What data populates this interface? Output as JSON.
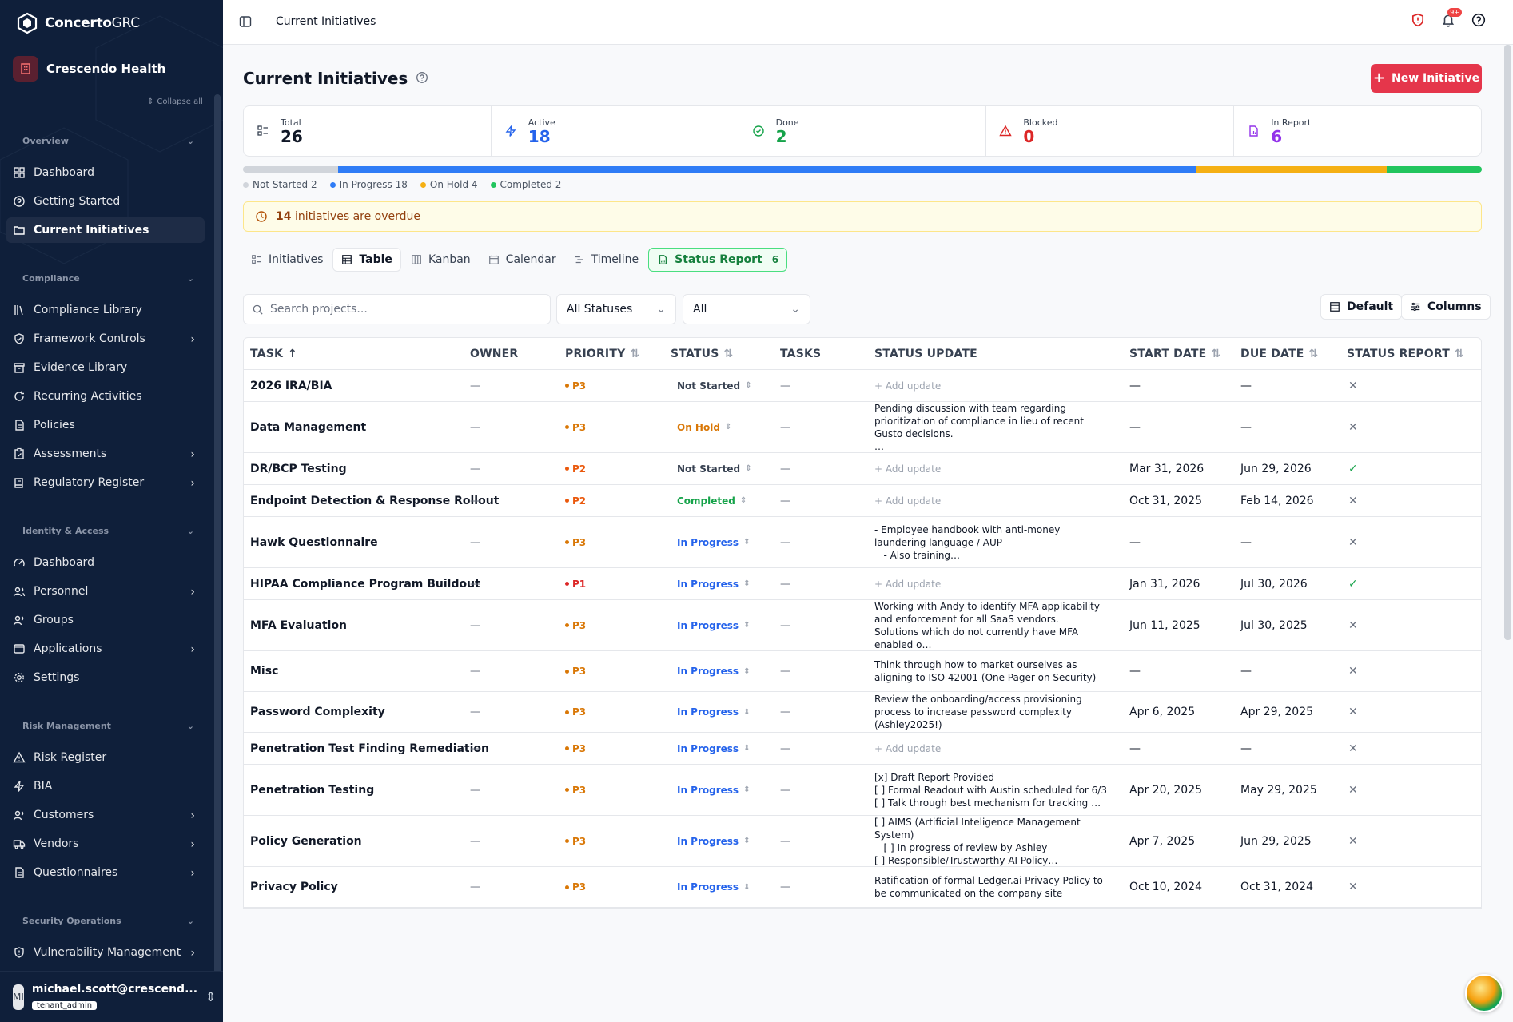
{
  "brand": {
    "name_bold": "Concerto",
    "name_rest": "GRC"
  },
  "org": {
    "name": "Crescendo Health"
  },
  "sidebar": {
    "collapse_all": "Collapse all",
    "sections": {
      "overview": "Overview",
      "compliance": "Compliance",
      "identity": "Identity & Access",
      "risk": "Risk Management",
      "secops": "Security Operations"
    },
    "items": [
      {
        "label": "Dashboard"
      },
      {
        "label": "Getting Started"
      },
      {
        "label": "Current Initiatives"
      },
      {
        "label": "Compliance Library"
      },
      {
        "label": "Framework Controls"
      },
      {
        "label": "Evidence Library"
      },
      {
        "label": "Recurring Activities"
      },
      {
        "label": "Policies"
      },
      {
        "label": "Assessments"
      },
      {
        "label": "Regulatory Register"
      },
      {
        "label": "Dashboard"
      },
      {
        "label": "Personnel"
      },
      {
        "label": "Groups"
      },
      {
        "label": "Applications"
      },
      {
        "label": "Settings"
      },
      {
        "label": "Risk Register"
      },
      {
        "label": "BIA"
      },
      {
        "label": "Customers"
      },
      {
        "label": "Vendors"
      },
      {
        "label": "Questionnaires"
      },
      {
        "label": "Vulnerability Management"
      }
    ],
    "user": {
      "initials": "MI",
      "email": "michael.scott@crescend...",
      "role": "tenant_admin"
    }
  },
  "topbar": {
    "title": "Current Initiatives",
    "notif_count": "9+"
  },
  "page": {
    "title": "Current Initiatives",
    "new_button": "New Initiative"
  },
  "stats": [
    {
      "label": "Total",
      "value": "26",
      "color": "#111827"
    },
    {
      "label": "Active",
      "value": "18",
      "color": "#2563eb"
    },
    {
      "label": "Done",
      "value": "2",
      "color": "#16a34a"
    },
    {
      "label": "Blocked",
      "value": "0",
      "color": "#dc2626"
    },
    {
      "label": "In Report",
      "value": "6",
      "color": "#9333ea"
    }
  ],
  "progress": {
    "segments": [
      {
        "label": "Not Started 2",
        "count": 2,
        "color": "#d1d5db"
      },
      {
        "label": "In Progress 18",
        "count": 18,
        "color": "#2f7cf6"
      },
      {
        "label": "On Hold 4",
        "count": 4,
        "color": "#f5b014"
      },
      {
        "label": "Completed 2",
        "count": 2,
        "color": "#22c55e"
      }
    ]
  },
  "overdue": {
    "count": "14",
    "text": "initiatives are overdue"
  },
  "tabs": [
    {
      "label": "Initiatives"
    },
    {
      "label": "Table"
    },
    {
      "label": "Kanban"
    },
    {
      "label": "Calendar"
    },
    {
      "label": "Timeline"
    },
    {
      "label": "Status Report",
      "count": "6"
    }
  ],
  "filters": {
    "search_placeholder": "Search projects...",
    "status": "All Statuses",
    "all": "All",
    "default_btn": "Default",
    "columns_btn": "Columns"
  },
  "table": {
    "headers": {
      "task": "TASK",
      "owner": "OWNER",
      "priority": "PRIORITY",
      "status": "STATUS",
      "tasks": "TASKS",
      "update": "STATUS UPDATE",
      "start": "START DATE",
      "due": "DUE DATE",
      "report": "STATUS REPORT"
    },
    "rows": [
      {
        "task": "2026 IRA/BIA",
        "owner": "—",
        "priority": "P3",
        "status": "Not Started",
        "tasks": "—",
        "update": "+ Add update",
        "start": "—",
        "due": "—",
        "report": "✕"
      },
      {
        "task": "Data Management",
        "owner": "—",
        "priority": "P3",
        "status": "On Hold",
        "tasks": "—",
        "update": "Pending discussion with team regarding prioritization of compliance in lieu of recent Gusto decisions.\n…",
        "start": "—",
        "due": "—",
        "report": "✕"
      },
      {
        "task": "DR/BCP Testing",
        "owner": "—",
        "priority": "P2",
        "status": "Not Started",
        "tasks": "—",
        "update": "+ Add update",
        "start": "Mar 31, 2026",
        "due": "Jun 29, 2026",
        "report": "✓"
      },
      {
        "task": "Endpoint Detection & Response Rollout",
        "owner": "—",
        "priority": "P2",
        "status": "Completed",
        "tasks": "—",
        "update": "+ Add update",
        "start": "Oct 31, 2025",
        "due": "Feb 14, 2026",
        "report": "✕"
      },
      {
        "task": "Hawk Questionnaire",
        "owner": "—",
        "priority": "P3",
        "status": "In Progress",
        "tasks": "—",
        "update": "- Employee handbook with anti-money laundering language / AUP\n   - Also training…",
        "start": "—",
        "due": "—",
        "report": "✕"
      },
      {
        "task": "HIPAA Compliance Program Buildout",
        "owner": "—",
        "priority": "P1",
        "status": "In Progress",
        "tasks": "—",
        "update": "+ Add update",
        "start": "Jan 31, 2026",
        "due": "Jul 30, 2026",
        "report": "✓"
      },
      {
        "task": "MFA Evaluation",
        "owner": "—",
        "priority": "P3",
        "status": "In Progress",
        "tasks": "—",
        "update": "Working with Andy to identify MFA applicability and enforcement for all SaaS vendors.\nSolutions which do not currently have MFA enabled o…",
        "start": "Jun 11, 2025",
        "due": "Jul 30, 2025",
        "report": "✕"
      },
      {
        "task": "Misc",
        "owner": "—",
        "priority": "P3",
        "status": "In Progress",
        "tasks": "—",
        "update": "Think through how to market ourselves as aligning to ISO 42001 (One Pager on Security)",
        "start": "—",
        "due": "—",
        "report": "✕"
      },
      {
        "task": "Password Complexity",
        "owner": "—",
        "priority": "P3",
        "status": "In Progress",
        "tasks": "—",
        "update": "Review the onboarding/access provisioning process to increase password complexity (Ashley2025!)",
        "start": "Apr 6, 2025",
        "due": "Apr 29, 2025",
        "report": "✕"
      },
      {
        "task": "Penetration Test Finding Remediation",
        "owner": "—",
        "priority": "P3",
        "status": "In Progress",
        "tasks": "—",
        "update": "+ Add update",
        "start": "—",
        "due": "—",
        "report": "✕"
      },
      {
        "task": "Penetration Testing",
        "owner": "—",
        "priority": "P3",
        "status": "In Progress",
        "tasks": "—",
        "update": "[x] Draft Report Provided\n[ ] Formal Readout with Austin scheduled for 6/3\n[ ] Talk through best mechanism for tracking …",
        "start": "Apr 20, 2025",
        "due": "May 29, 2025",
        "report": "✕"
      },
      {
        "task": "Policy Generation",
        "owner": "—",
        "priority": "P3",
        "status": "In Progress",
        "tasks": "—",
        "update": "[ ] AIMS (Artificial Inteligence Management System)\n   [ ] In progress of review by Ashley\n[ ] Responsible/Trustworthy AI Policy…",
        "start": "Apr 7, 2025",
        "due": "Jun 29, 2025",
        "report": "✕"
      },
      {
        "task": "Privacy Policy",
        "owner": "—",
        "priority": "P3",
        "status": "In Progress",
        "tasks": "—",
        "update": "Ratification of formal Ledger.ai Privacy Policy to be communicated on the company site",
        "start": "Oct 10, 2024",
        "due": "Oct 31, 2024",
        "report": "✕"
      }
    ]
  },
  "colors": {
    "p1": "#dc2626",
    "p2": "#ea580c",
    "p3": "#d97706",
    "in_progress": "#2563eb",
    "on_hold": "#d97706",
    "completed": "#16a34a",
    "not_started": "#374151"
  }
}
